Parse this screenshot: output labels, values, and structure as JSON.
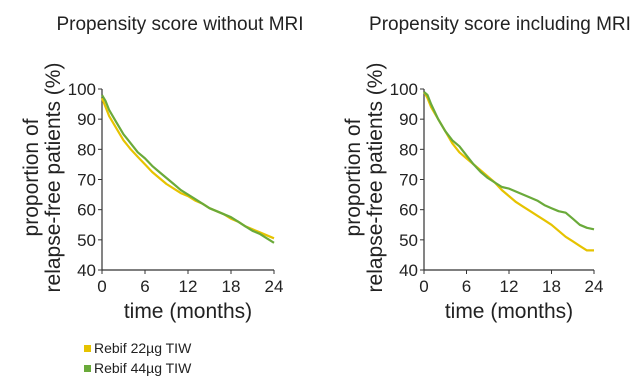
{
  "chart_data": [
    {
      "type": "line",
      "title": "Propensity score without MRI",
      "xlabel": "time (months)",
      "ylabel": "proportion of relapse-free patients (%)",
      "xlim": [
        0,
        24
      ],
      "ylim": [
        40,
        100
      ],
      "x_ticks": [
        0,
        6,
        12,
        18,
        24
      ],
      "y_ticks": [
        40,
        50,
        60,
        70,
        80,
        90,
        100
      ],
      "grid": false,
      "series": [
        {
          "name": "Rebif 22µg TIW",
          "color": "#e6c300",
          "x": [
            0,
            0.5,
            1,
            2,
            3,
            4,
            5,
            6,
            7,
            8,
            9,
            10,
            11,
            12,
            13,
            14,
            15,
            16,
            17,
            18,
            19,
            20,
            21,
            22,
            23,
            24
          ],
          "y": [
            97,
            94,
            91,
            87,
            83,
            80,
            77.5,
            75,
            72.5,
            70.5,
            68.5,
            67,
            65.5,
            64.5,
            63,
            62,
            60.5,
            59.5,
            58.5,
            57,
            56,
            54.5,
            53.5,
            52.5,
            51.5,
            50.5
          ]
        },
        {
          "name": "Rebif 44µg TIW",
          "color": "#6aaa3a",
          "x": [
            0,
            0.5,
            1,
            2,
            3,
            4,
            5,
            6,
            7,
            8,
            9,
            10,
            11,
            12,
            13,
            14,
            15,
            16,
            17,
            18,
            19,
            20,
            21,
            22,
            23,
            24
          ],
          "y": [
            98,
            96,
            93,
            89,
            85,
            82,
            79,
            77,
            74.5,
            72.5,
            70.5,
            68.5,
            66.5,
            65,
            63.5,
            62,
            60.5,
            59.5,
            58.5,
            57.5,
            56,
            54.5,
            53,
            52,
            50.5,
            49
          ]
        }
      ]
    },
    {
      "type": "line",
      "title": "Propensity score including MRI",
      "xlabel": "time (months)",
      "ylabel": "proportion of relapse-free patients (%)",
      "xlim": [
        0,
        24
      ],
      "ylim": [
        40,
        100
      ],
      "x_ticks": [
        0,
        6,
        12,
        18,
        24
      ],
      "y_ticks": [
        40,
        50,
        60,
        70,
        80,
        90,
        100
      ],
      "grid": false,
      "series": [
        {
          "name": "Rebif 22µg TIW",
          "color": "#e6c300",
          "x": [
            0,
            0.5,
            1,
            2,
            3,
            4,
            5,
            6,
            7,
            8,
            9,
            10,
            11,
            12,
            13,
            14,
            15,
            16,
            17,
            18,
            19,
            20,
            21,
            22,
            23,
            24
          ],
          "y": [
            99,
            97,
            94,
            90,
            86,
            82,
            79,
            77,
            75,
            73,
            71,
            69,
            66.5,
            64.5,
            62.5,
            61,
            59.5,
            58,
            56.5,
            55,
            53,
            51,
            49.5,
            48,
            46.5,
            46.5
          ]
        },
        {
          "name": "Rebif 44µg TIW",
          "color": "#6aaa3a",
          "x": [
            0,
            0.5,
            1,
            2,
            3,
            4,
            5,
            6,
            7,
            8,
            9,
            10,
            11,
            12,
            13,
            14,
            15,
            16,
            17,
            18,
            19,
            20,
            21,
            22,
            23,
            24
          ],
          "y": [
            99,
            98,
            95,
            90,
            86,
            83,
            81,
            78,
            75,
            72.5,
            70.5,
            69,
            67.5,
            67,
            66,
            65,
            64,
            63,
            61.5,
            60.5,
            59.5,
            59,
            57,
            55,
            54,
            53.5
          ]
        }
      ]
    }
  ],
  "legend": {
    "items": [
      {
        "label": "Rebif 22µg TIW",
        "color": "#e6c300"
      },
      {
        "label": "Rebif 44µg TIW",
        "color": "#6aaa3a"
      }
    ]
  }
}
